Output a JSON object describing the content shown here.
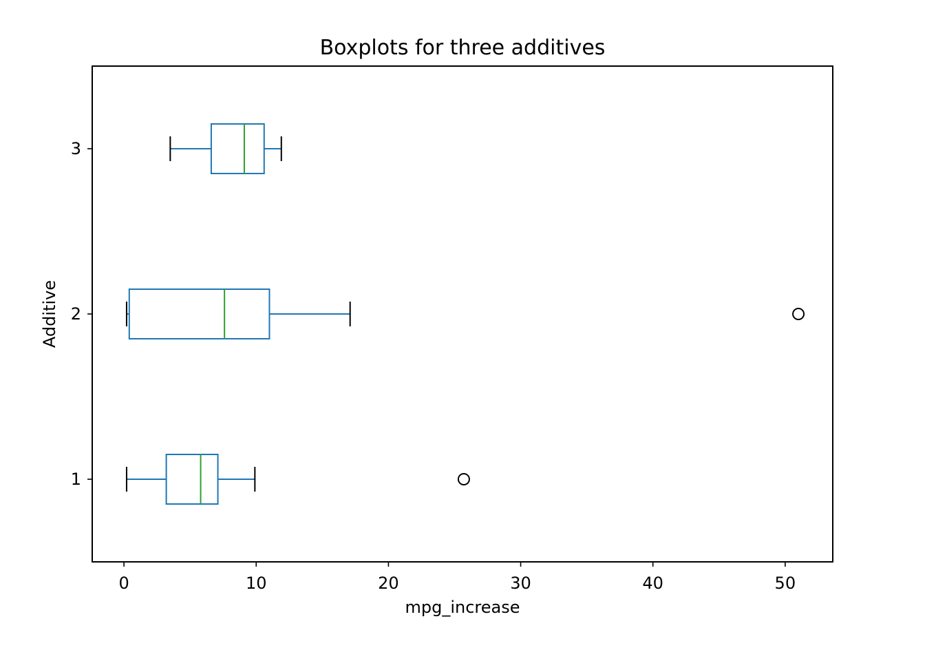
{
  "chart_data": {
    "type": "boxplot",
    "orientation": "horizontal",
    "title": "Boxplots for three additives",
    "xlabel": "mpg_increase",
    "ylabel": "Additive",
    "xlim": [
      -2.4,
      53.6
    ],
    "ylim": [
      0.5,
      3.5
    ],
    "x_ticks": [
      0,
      10,
      20,
      30,
      40,
      50
    ],
    "categories": [
      "1",
      "2",
      "3"
    ],
    "grid": false,
    "colors": {
      "box": "#1f77b4",
      "median": "#2ca02c",
      "whisker_cap": "#000000",
      "flier": "#000000"
    },
    "boxes": [
      {
        "label": "1",
        "whisker_low": 0.2,
        "q1": 3.2,
        "median": 5.8,
        "q3": 7.1,
        "whisker_high": 9.9,
        "outliers": [
          25.7
        ]
      },
      {
        "label": "2",
        "whisker_low": 0.2,
        "q1": 0.4,
        "median": 7.6,
        "q3": 11.0,
        "whisker_high": 17.1,
        "outliers": [
          51.0
        ]
      },
      {
        "label": "3",
        "whisker_low": 3.5,
        "q1": 6.6,
        "median": 9.1,
        "q3": 10.6,
        "whisker_high": 11.9,
        "outliers": []
      }
    ]
  }
}
